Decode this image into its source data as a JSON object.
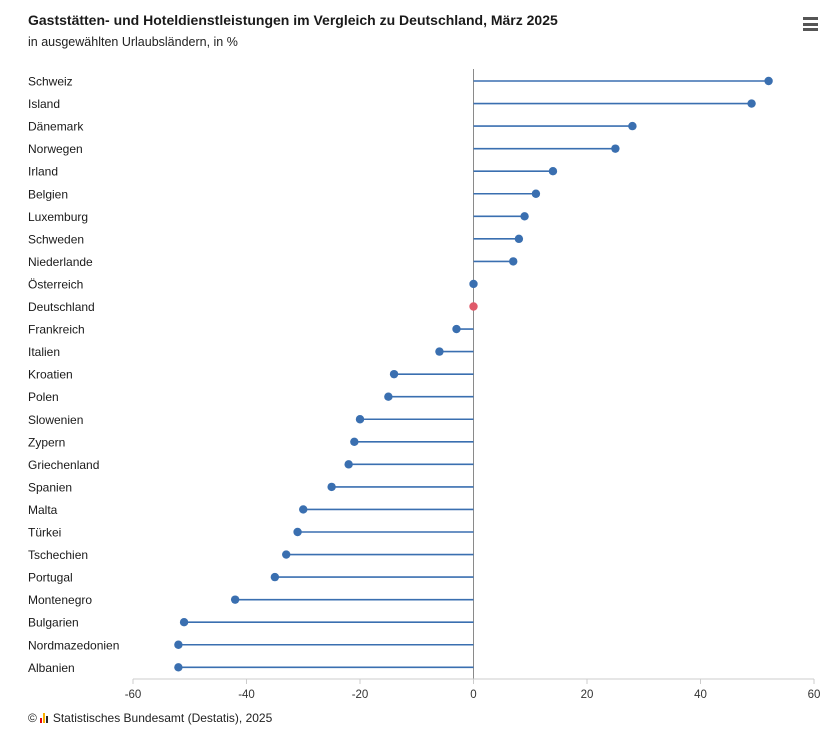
{
  "header": {
    "title": "Gaststätten- und Hoteldienstleistungen im Vergleich zu Deutschland, März 2025",
    "subtitle": "in ausgewählten Urlaubsländern, in %",
    "menu_icon": "hamburger-menu-icon"
  },
  "footer": {
    "copyright_symbol": "©",
    "credit": "Statistisches Bundesamt (Destatis), 2025"
  },
  "colors": {
    "series": "#3a6fb0",
    "highlight": "#e05a6a",
    "axis": "#8a8a8a",
    "logo": [
      "#e30613",
      "#f9b000",
      "#2b2b2b"
    ]
  },
  "chart_data": {
    "type": "lollipop",
    "title": "Gaststätten- und Hoteldienstleistungen im Vergleich zu Deutschland, März 2025",
    "subtitle": "in ausgewählten Urlaubsländern, in %",
    "xlabel": "",
    "ylabel": "",
    "xlim": [
      -60,
      60
    ],
    "xticks": [
      -60,
      -40,
      -20,
      0,
      20,
      40,
      60
    ],
    "highlight": "Deutschland",
    "categories": [
      "Schweiz",
      "Island",
      "Dänemark",
      "Norwegen",
      "Irland",
      "Belgien",
      "Luxemburg",
      "Schweden",
      "Niederlande",
      "Österreich",
      "Deutschland",
      "Frankreich",
      "Italien",
      "Kroatien",
      "Polen",
      "Slowenien",
      "Zypern",
      "Griechenland",
      "Spanien",
      "Malta",
      "Türkei",
      "Tschechien",
      "Portugal",
      "Montenegro",
      "Bulgarien",
      "Nordmazedonien",
      "Albanien"
    ],
    "values": [
      52,
      49,
      28,
      25,
      14,
      11,
      9,
      8,
      7,
      0,
      0,
      -3,
      -6,
      -14,
      -15,
      -20,
      -21,
      -22,
      -25,
      -30,
      -31,
      -33,
      -35,
      -42,
      -51,
      -52,
      -52
    ]
  }
}
